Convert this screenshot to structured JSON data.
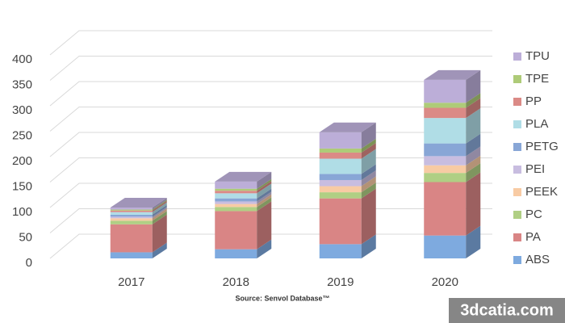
{
  "chart_data": {
    "type": "bar3d_stacked",
    "source": "Source: Senvol Database™",
    "watermark": "3dcatia.com",
    "categories": [
      "2017",
      "2018",
      "2019",
      "2020"
    ],
    "series": [
      {
        "name": "ABS",
        "color": "#7eaadf",
        "values": [
          12,
          18,
          28,
          45
        ]
      },
      {
        "name": "PA",
        "color": "#d98585",
        "values": [
          55,
          75,
          90,
          105
        ]
      },
      {
        "name": "PC",
        "color": "#b0cf84",
        "values": [
          7,
          8,
          12,
          18
        ]
      },
      {
        "name": "PEEK",
        "color": "#f8cba4",
        "values": [
          5,
          6,
          12,
          15
        ]
      },
      {
        "name": "PEI",
        "color": "#c8bde0",
        "values": [
          3,
          5,
          12,
          18
        ]
      },
      {
        "name": "PETG",
        "color": "#88a6d6",
        "values": [
          4,
          6,
          12,
          25
        ]
      },
      {
        "name": "PLA",
        "color": "#b0dde6",
        "values": [
          5,
          10,
          30,
          50
        ]
      },
      {
        "name": "PP",
        "color": "#db8a86",
        "values": [
          3,
          5,
          12,
          20
        ]
      },
      {
        "name": "TPE",
        "color": "#aecb78",
        "values": [
          2,
          4,
          8,
          10
        ]
      },
      {
        "name": "TPU",
        "color": "#bcaed8",
        "values": [
          4,
          14,
          32,
          45
        ]
      }
    ],
    "ylim": [
      0,
      400
    ],
    "yticks": [
      0,
      50,
      100,
      150,
      200,
      250,
      300,
      350,
      400
    ],
    "grid": true
  }
}
